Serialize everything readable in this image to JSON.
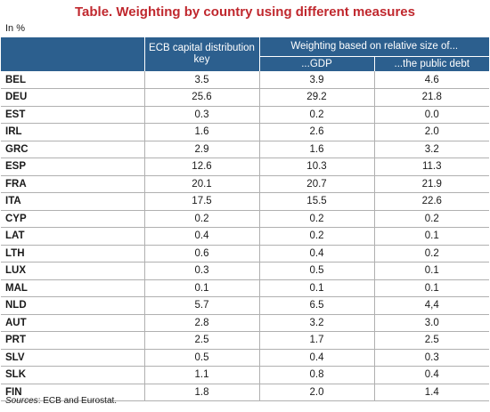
{
  "title": "Table. Weighting by country using different measures",
  "unit": "In %",
  "headers": {
    "ecb": "ECB capital distribution key",
    "group": "Weighting based on relative size of...",
    "gdp": "...GDP",
    "debt": "...the public debt"
  },
  "rows": [
    {
      "country": "BEL",
      "ecb": "3.5",
      "gdp": "3.9",
      "debt": "4.6"
    },
    {
      "country": "DEU",
      "ecb": "25.6",
      "gdp": "29.2",
      "debt": "21.8"
    },
    {
      "country": "EST",
      "ecb": "0.3",
      "gdp": "0.2",
      "debt": "0.0"
    },
    {
      "country": "IRL",
      "ecb": "1.6",
      "gdp": "2.6",
      "debt": "2.0"
    },
    {
      "country": "GRC",
      "ecb": "2.9",
      "gdp": "1.6",
      "debt": "3.2"
    },
    {
      "country": "ESP",
      "ecb": "12.6",
      "gdp": "10.3",
      "debt": "11.3"
    },
    {
      "country": "FRA",
      "ecb": "20.1",
      "gdp": "20.7",
      "debt": "21.9"
    },
    {
      "country": "ITA",
      "ecb": "17.5",
      "gdp": "15.5",
      "debt": "22.6"
    },
    {
      "country": "CYP",
      "ecb": "0.2",
      "gdp": "0.2",
      "debt": "0.2"
    },
    {
      "country": "LAT",
      "ecb": "0.4",
      "gdp": "0.2",
      "debt": "0.1"
    },
    {
      "country": "LTH",
      "ecb": "0.6",
      "gdp": "0.4",
      "debt": "0.2"
    },
    {
      "country": "LUX",
      "ecb": "0.3",
      "gdp": "0.5",
      "debt": "0.1"
    },
    {
      "country": "MAL",
      "ecb": "0.1",
      "gdp": "0.1",
      "debt": "0.1"
    },
    {
      "country": "NLD",
      "ecb": "5.7",
      "gdp": "6.5",
      "debt": "4,4"
    },
    {
      "country": "AUT",
      "ecb": "2.8",
      "gdp": "3.2",
      "debt": "3.0"
    },
    {
      "country": "PRT",
      "ecb": "2.5",
      "gdp": "1.7",
      "debt": "2.5"
    },
    {
      "country": "SLV",
      "ecb": "0.5",
      "gdp": "0.4",
      "debt": "0.3"
    },
    {
      "country": "SLK",
      "ecb": "1.1",
      "gdp": "0.8",
      "debt": "0.4"
    },
    {
      "country": "FIN",
      "ecb": "1.8",
      "gdp": "2.0",
      "debt": "1.4"
    }
  ],
  "source": {
    "label": "Sources",
    "text": ": ECB and Eurostat."
  }
}
